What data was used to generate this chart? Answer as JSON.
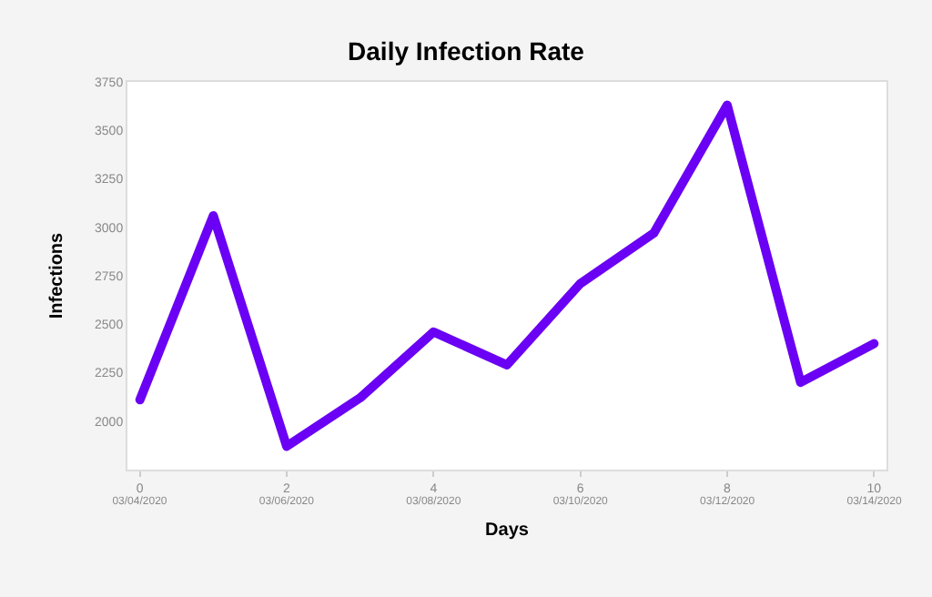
{
  "chart_data": {
    "type": "line",
    "title": "Daily Infection Rate",
    "xlabel": "Days",
    "ylabel": "Infections",
    "x": [
      0,
      1,
      2,
      3,
      4,
      5,
      6,
      7,
      8,
      9,
      10
    ],
    "series": [
      {
        "color": "#6a00f4",
        "values": [
          2110,
          3060,
          1870,
          2120,
          2460,
          2290,
          2710,
          2970,
          3630,
          2200,
          2400
        ]
      }
    ],
    "xlim": [
      -0.17,
      10.17
    ],
    "xticks": [
      0,
      2,
      4,
      6,
      8,
      10
    ],
    "x2lim": [
      "2020-03-03T20:00",
      "2020-03-14T04:00"
    ],
    "x2ticks": [
      {
        "value": "2020-03-04",
        "label": "03/04/2020"
      },
      {
        "value": "2020-03-06",
        "label": "03/06/2020"
      },
      {
        "value": "2020-03-08",
        "label": "03/08/2020"
      },
      {
        "value": "2020-03-10",
        "label": "03/10/2020"
      },
      {
        "value": "2020-03-12",
        "label": "03/12/2020"
      },
      {
        "value": "2020-03-14",
        "label": "03/14/2020"
      }
    ],
    "ylim": [
      1750,
      3750
    ],
    "yticks": [
      2000,
      2250,
      2500,
      2750,
      3000,
      3250,
      3500,
      3750
    ],
    "grid": false,
    "marker": "none",
    "line_style": "solid"
  }
}
